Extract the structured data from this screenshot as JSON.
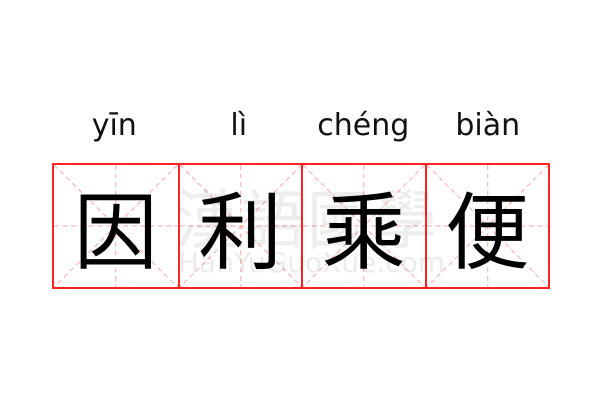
{
  "idiom": {
    "characters": [
      "因",
      "利",
      "乘",
      "便"
    ],
    "pinyin": [
      "yīn",
      "lì",
      "chéng",
      "biàn"
    ]
  },
  "watermark": {
    "text": "漢語國學",
    "url": "HanYuGuoXue.com"
  },
  "colors": {
    "grid_border": "#ff2222",
    "guide_lines": "#f7a8a8"
  }
}
